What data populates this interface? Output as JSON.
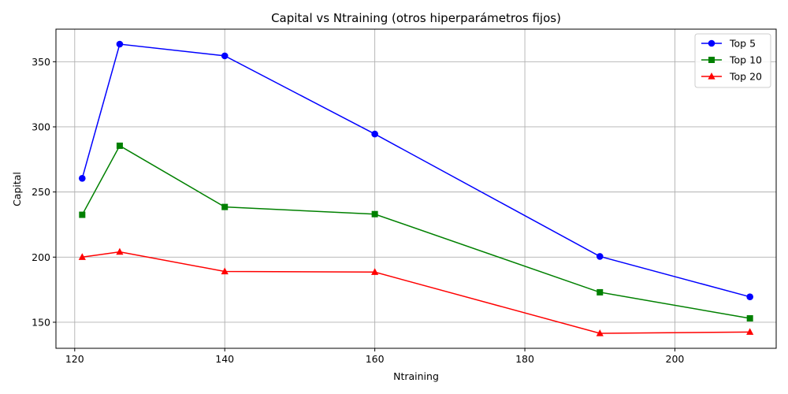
{
  "chart_data": {
    "type": "line",
    "title": "Capital vs Ntraining (otros hiperparámetros fijos)",
    "xlabel": "Ntraining",
    "ylabel": "Capital",
    "xlim": [
      117.5,
      213.5
    ],
    "ylim": [
      130,
      375
    ],
    "xticks": [
      120,
      140,
      160,
      180,
      200
    ],
    "yticks": [
      150,
      200,
      250,
      300,
      350
    ],
    "grid": true,
    "legend_position": "top-right",
    "x": [
      121,
      126,
      140,
      160,
      190,
      210
    ],
    "series": [
      {
        "name": "Top 5",
        "color": "#0000ff",
        "marker": "circle",
        "values": [
          260.5,
          363.5,
          354.5,
          294.5,
          200.5,
          169.5
        ]
      },
      {
        "name": "Top 10",
        "color": "#008000",
        "marker": "square",
        "values": [
          232.5,
          285.5,
          238.5,
          233.0,
          173.0,
          153.0
        ]
      },
      {
        "name": "Top 20",
        "color": "#ff0000",
        "marker": "triangle",
        "values": [
          200.0,
          204.0,
          189.0,
          188.5,
          141.5,
          142.5
        ]
      }
    ]
  }
}
